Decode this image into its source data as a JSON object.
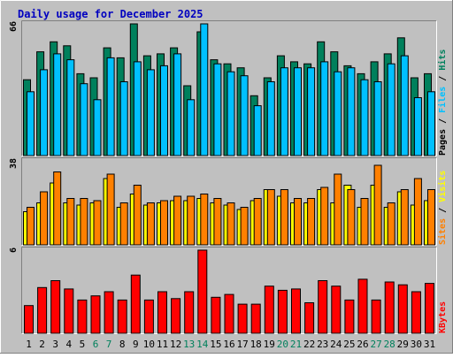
{
  "chart_data": {
    "type": "bar",
    "title": "Daily usage for December 2025",
    "categories": [
      "1",
      "2",
      "3",
      "4",
      "5",
      "6",
      "7",
      "8",
      "9",
      "10",
      "11",
      "12",
      "13",
      "14",
      "15",
      "16",
      "17",
      "18",
      "19",
      "20",
      "21",
      "22",
      "23",
      "24",
      "25",
      "26",
      "27",
      "28",
      "29",
      "30",
      "31"
    ],
    "weekend_days": [
      "6",
      "7",
      "13",
      "14",
      "20",
      "21",
      "27",
      "28"
    ],
    "panels": [
      {
        "id": "hits-files-pages",
        "ylim": [
          0,
          66
        ],
        "max_label": "66",
        "side_labels": [
          "Pages",
          "Files",
          "Hits"
        ],
        "series": [
          {
            "name": "Hits",
            "color": "#00805c",
            "values": [
              38,
              52,
              57,
              55,
              41,
              39,
              54,
              49,
              66,
              50,
              51,
              54,
              35,
              62,
              48,
              46,
              44,
              30,
              39,
              50,
              47,
              46,
              57,
              52,
              45,
              41,
              47,
              51,
              59,
              39,
              41
            ]
          },
          {
            "name": "Files",
            "color": "#00c0ff",
            "values": [
              32,
              43,
              51,
              48,
              36,
              28,
              49,
              37,
              47,
              43,
              45,
              51,
              28,
              66,
              46,
              42,
              40,
              25,
              37,
              44,
              44,
              44,
              47,
              42,
              44,
              38,
              37,
              46,
              50,
              29,
              32
            ]
          }
        ]
      },
      {
        "id": "sites-visits",
        "ylim": [
          0,
          38
        ],
        "max_label": "38",
        "side_labels": [
          "Sites",
          "Visits"
        ],
        "series": [
          {
            "name": "Visits",
            "color": "#ffff00",
            "values": [
              15,
              19,
              28,
              19,
              18,
              19,
              30,
              17,
              23,
              18,
              19,
              20,
              20,
              21,
              19,
              18,
              16,
              20,
              25,
              22,
              19,
              19,
              25,
              19,
              27,
              17,
              27,
              17,
              24,
              18,
              20
            ]
          },
          {
            "name": "Sites",
            "color": "#ff8000",
            "values": [
              17,
              24,
              33,
              21,
              21,
              20,
              32,
              19,
              27,
              19,
              20,
              22,
              22,
              23,
              21,
              19,
              17,
              21,
              25,
              25,
              21,
              21,
              26,
              32,
              25,
              21,
              36,
              19,
              25,
              30,
              25
            ]
          }
        ]
      },
      {
        "id": "kbytes",
        "ylim": [
          0,
          6
        ],
        "max_label": "6",
        "side_labels": [
          "KBytes"
        ],
        "series": [
          {
            "name": "KBytes",
            "color": "#ff0000",
            "values": [
              2.0,
              3.3,
              3.8,
              3.2,
              2.4,
              2.7,
              3.0,
              2.4,
              4.2,
              2.4,
              3.0,
              2.5,
              3.0,
              6.0,
              2.6,
              2.8,
              2.1,
              2.1,
              3.4,
              3.1,
              3.2,
              2.2,
              3.8,
              3.4,
              2.4,
              3.9,
              2.4,
              3.7,
              3.5,
              3.0,
              3.6
            ]
          }
        ]
      }
    ]
  },
  "colors": {
    "background": "#c0c0c0",
    "title": "#0000c0",
    "weekday_label": "#000000",
    "weekend_label": "#00805c",
    "slash": "#000000"
  }
}
